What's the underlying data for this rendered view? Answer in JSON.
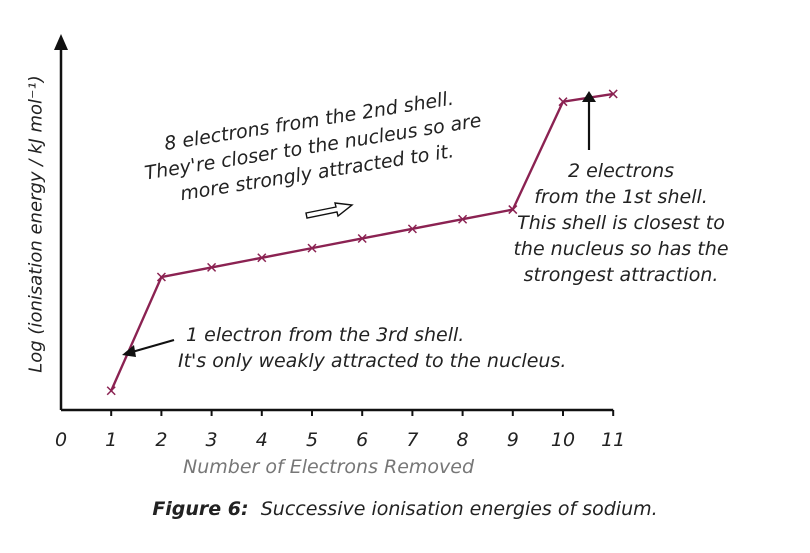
{
  "chart_data": {
    "type": "line",
    "xlabel": "Number of Electrons Removed",
    "ylabel": "Log (ionisation energy / kJ mol⁻¹)",
    "x_ticks": [
      "0",
      "1",
      "2",
      "3",
      "4",
      "5",
      "6",
      "7",
      "8",
      "9",
      "10",
      "11"
    ],
    "xlim": [
      0,
      11
    ],
    "series": [
      {
        "x": [
          1,
          2,
          3,
          4,
          5,
          6,
          7,
          8,
          9,
          10,
          11
        ],
        "y": [
          0.3,
          3.25,
          3.5,
          3.75,
          4.0,
          4.25,
          4.5,
          4.75,
          5.0,
          7.8,
          8.0
        ],
        "marker": "x",
        "color": "#8b2252"
      }
    ],
    "ylim": [
      -0.2,
      9.4
    ],
    "y_ticks_shown": false,
    "annotations": {
      "third_shell": [
        "1 electron from the 3rd shell.",
        "It's only weakly attracted to the nucleus."
      ],
      "second_shell": [
        "8 electrons from the 2nd shell.",
        "They're closer to the nucleus so are",
        "more strongly attracted to it."
      ],
      "first_shell": [
        "2 electrons",
        "from the 1st shell.",
        "This shell is closest to",
        "the nucleus so has the",
        "strongest attraction."
      ]
    }
  },
  "caption": {
    "label": "Figure 6:",
    "text": "Successive ionisation energies of sodium."
  }
}
